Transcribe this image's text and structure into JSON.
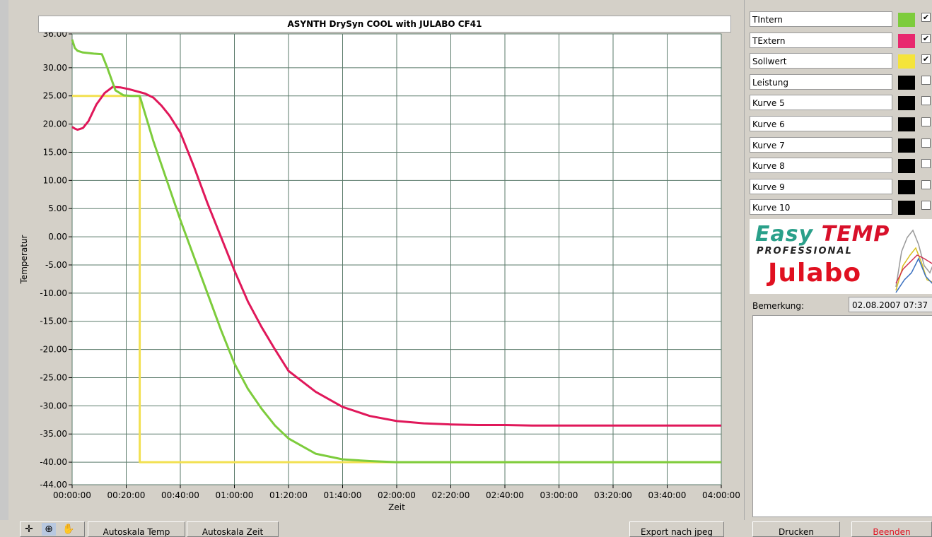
{
  "chart_data": {
    "type": "line",
    "title": "ASYNTH DrySyn COOL with JULABO CF41",
    "xlabel": "Zeit",
    "ylabel": "Temperatur",
    "xlim": [
      0,
      240
    ],
    "ylim": [
      -44,
      36
    ],
    "grid": true,
    "x_tick_labels": [
      "00:00:00",
      "00:20:00",
      "00:40:00",
      "01:00:00",
      "01:20:00",
      "01:40:00",
      "02:00:00",
      "02:20:00",
      "02:40:00",
      "03:00:00",
      "03:20:00",
      "03:40:00",
      "04:00:00"
    ],
    "y_tick_labels": [
      "36.00",
      "30.00",
      "25.00",
      "20.00",
      "15.00",
      "10.00",
      "5.00",
      "0.00",
      "-5.00",
      "-10.00",
      "-15.00",
      "-20.00",
      "-25.00",
      "-30.00",
      "-35.00",
      "-40.00",
      "-44.00"
    ],
    "series": [
      {
        "name": "TIntern",
        "color": "#7dcc3c",
        "x": [
          0,
          1,
          2,
          4,
          8,
          11,
          13,
          16,
          19,
          22,
          25,
          30,
          35,
          40,
          45,
          50,
          55,
          60,
          65,
          70,
          75,
          80,
          90,
          100,
          110,
          120,
          130,
          140,
          160,
          180,
          200,
          220,
          240
        ],
        "y": [
          35,
          33.5,
          33,
          32.7,
          32.5,
          32.4,
          30,
          26,
          25.1,
          25,
          25,
          17,
          10,
          3,
          -3.5,
          -10,
          -16.5,
          -22.5,
          -27,
          -30.5,
          -33.5,
          -35.8,
          -38.5,
          -39.5,
          -39.8,
          -40,
          -40,
          -40,
          -40,
          -40,
          -40,
          -40,
          -40
        ]
      },
      {
        "name": "TExtern",
        "color": "#e0185a",
        "x": [
          0,
          1,
          2,
          4,
          6,
          9,
          12,
          15,
          18,
          21,
          24,
          27,
          30,
          33,
          36,
          40,
          45,
          50,
          55,
          60,
          65,
          70,
          75,
          80,
          90,
          100,
          110,
          120,
          130,
          140,
          150,
          160,
          170,
          180,
          200,
          220,
          240
        ],
        "y": [
          19.5,
          19.2,
          19,
          19.3,
          20.5,
          23.5,
          25.5,
          26.6,
          26.5,
          26.2,
          25.8,
          25.4,
          24.7,
          23.3,
          21.5,
          18.5,
          12.5,
          6,
          0,
          -6,
          -11.5,
          -16,
          -20,
          -23.8,
          -27.5,
          -30.2,
          -31.8,
          -32.7,
          -33.1,
          -33.3,
          -33.4,
          -33.4,
          -33.5,
          -33.5,
          -33.5,
          -33.5,
          -33.5
        ]
      },
      {
        "name": "Sollwert",
        "color": "#f2e050",
        "x": [
          0,
          25,
          25,
          240
        ],
        "y": [
          25,
          25,
          -40,
          -40
        ]
      }
    ]
  },
  "legend": [
    {
      "label": "TIntern",
      "color": "#7dcc3c",
      "checked": true,
      "check_mark": "✔"
    },
    {
      "label": "TExtern",
      "color": "#e8286e",
      "checked": true,
      "check_mark": "✔"
    },
    {
      "label": "Sollwert",
      "color": "#f5e43a",
      "checked": true,
      "check_mark": "✔"
    },
    {
      "label": "Leistung",
      "color": "#000000",
      "checked": false,
      "check_mark": ""
    },
    {
      "label": "Kurve 5",
      "color": "#000000",
      "checked": false,
      "check_mark": ""
    },
    {
      "label": "Kurve 6",
      "color": "#000000",
      "checked": false,
      "check_mark": ""
    },
    {
      "label": "Kurve 7",
      "color": "#000000",
      "checked": false,
      "check_mark": ""
    },
    {
      "label": "Kurve 8",
      "color": "#000000",
      "checked": false,
      "check_mark": ""
    },
    {
      "label": "Kurve 9",
      "color": "#000000",
      "checked": false,
      "check_mark": ""
    },
    {
      "label": "Kurve 10",
      "color": "#000000",
      "checked": false,
      "check_mark": ""
    }
  ],
  "logo": {
    "easy": "Easy",
    "temp": "TEMP",
    "professional": "PROFESSIONAL",
    "brand": "Julabo"
  },
  "remark": {
    "label": "Bemerkung:",
    "date": "02.08.2007 07:37"
  },
  "toolbar": {
    "tools": [
      "crosshair-icon",
      "zoom-icon",
      "pan-hand-icon"
    ],
    "autoscale_temp": "Autoskala Temp",
    "autoscale_time": "Autoskala  Zeit",
    "export": "Export nach jpeg",
    "print": "Drucken",
    "quit": "Beenden"
  },
  "colors": {
    "plot_bg": "#ffffff",
    "grid": "#5a7a6a",
    "quit_text": "#e01020"
  }
}
